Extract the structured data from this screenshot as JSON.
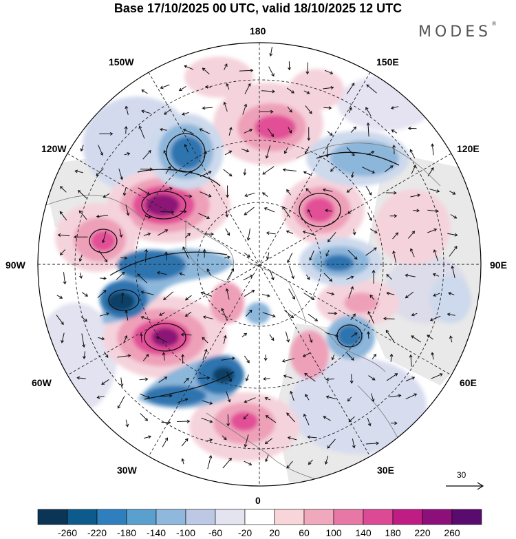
{
  "title": "Base 17/10/2025 00 UTC, valid 18/10/2025 12 UTC",
  "logo": "MODES",
  "logo_mark": "®",
  "map": {
    "projection": "polar-stereographic-north",
    "longitude_labels": {
      "top": "180",
      "bottom": "0",
      "left": "90W",
      "right": "90E",
      "upper_left_1": "150W",
      "upper_left_2": "120W",
      "upper_right_1": "150E",
      "upper_right_2": "120E",
      "lower_left_1": "60W",
      "lower_left_2": "30W",
      "lower_right_1": "60E",
      "lower_right_2": "30E"
    },
    "wind_reference": {
      "value": "30"
    },
    "field_colors": {
      "neg_strong": "#0f3f66",
      "neg_mid": "#2f74b0",
      "neg_light": "#8cb6da",
      "neg_faint": "#cdd9ec",
      "pos_faint": "#f5d3dc",
      "pos_light": "#eea0b9",
      "pos_mid": "#e24f96",
      "pos_strong": "#8c1477",
      "land_shade": "#e8e8e8"
    }
  },
  "colorbar": {
    "ticks": [
      "-260",
      "-220",
      "-180",
      "-140",
      "-100",
      "-60",
      "-20",
      "20",
      "60",
      "100",
      "140",
      "180",
      "220",
      "260"
    ],
    "colors": [
      "#0b3455",
      "#0d5a8c",
      "#2f7fbf",
      "#59a0cf",
      "#8fb8dc",
      "#bcc8e4",
      "#e4e4f1",
      "#ffffff",
      "#f8d5d9",
      "#f0a8bd",
      "#e777a5",
      "#dc4a95",
      "#c01d84",
      "#8c0f7a",
      "#5a0c6e"
    ]
  }
}
